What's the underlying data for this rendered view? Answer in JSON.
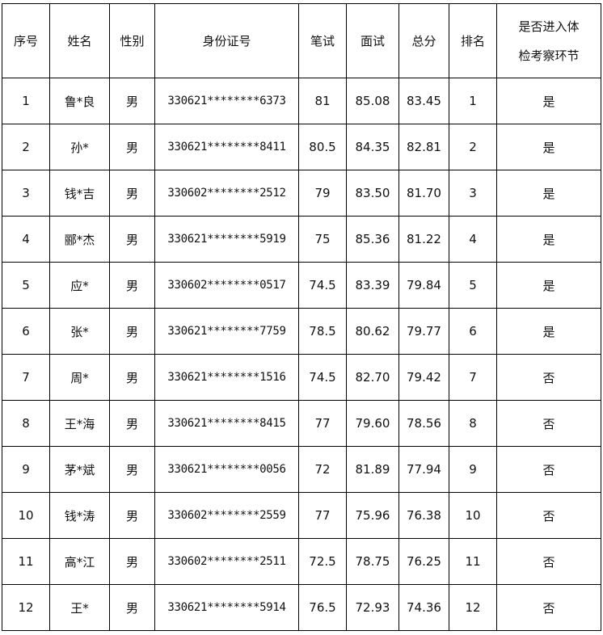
{
  "headers": [
    "序号",
    "姓名",
    "性别",
    "身份证号",
    "笔试",
    "面试",
    "总分",
    "排名",
    "是否进入体检考察环节"
  ],
  "header_last_lines": [
    "是否进入体",
    "检考察环节"
  ],
  "rows": [
    [
      "1",
      "鲁*良",
      "男",
      "330621********6373",
      "81",
      "85.08",
      "83.45",
      "1",
      "是"
    ],
    [
      "2",
      "孙*",
      "男",
      "330621********8411",
      "80.5",
      "84.35",
      "82.81",
      "2",
      "是"
    ],
    [
      "3",
      "钱*吉",
      "男",
      "330602********2512",
      "79",
      "83.50",
      "81.70",
      "3",
      "是"
    ],
    [
      "4",
      "郦*杰",
      "男",
      "330621********5919",
      "75",
      "85.36",
      "81.22",
      "4",
      "是"
    ],
    [
      "5",
      "应*",
      "男",
      "330602********0517",
      "74.5",
      "83.39",
      "79.84",
      "5",
      "是"
    ],
    [
      "6",
      "张*",
      "男",
      "330621********7759",
      "78.5",
      "80.62",
      "79.77",
      "6",
      "是"
    ],
    [
      "7",
      "周*",
      "男",
      "330621********1516",
      "74.5",
      "82.70",
      "79.42",
      "7",
      "否"
    ],
    [
      "8",
      "王*海",
      "男",
      "330621********8415",
      "77",
      "79.60",
      "78.56",
      "8",
      "否"
    ],
    [
      "9",
      "茅*斌",
      "男",
      "330621********0056",
      "72",
      "81.89",
      "77.94",
      "9",
      "否"
    ],
    [
      "10",
      "钱*涛",
      "男",
      "330602********2559",
      "77",
      "75.96",
      "76.38",
      "10",
      "否"
    ],
    [
      "11",
      "高*江",
      "男",
      "330602********2511",
      "72.5",
      "78.75",
      "76.25",
      "11",
      "否"
    ],
    [
      "12",
      "王*",
      "男",
      "330621********5914",
      "76.5",
      "72.93",
      "74.36",
      "12",
      "否"
    ]
  ]
}
